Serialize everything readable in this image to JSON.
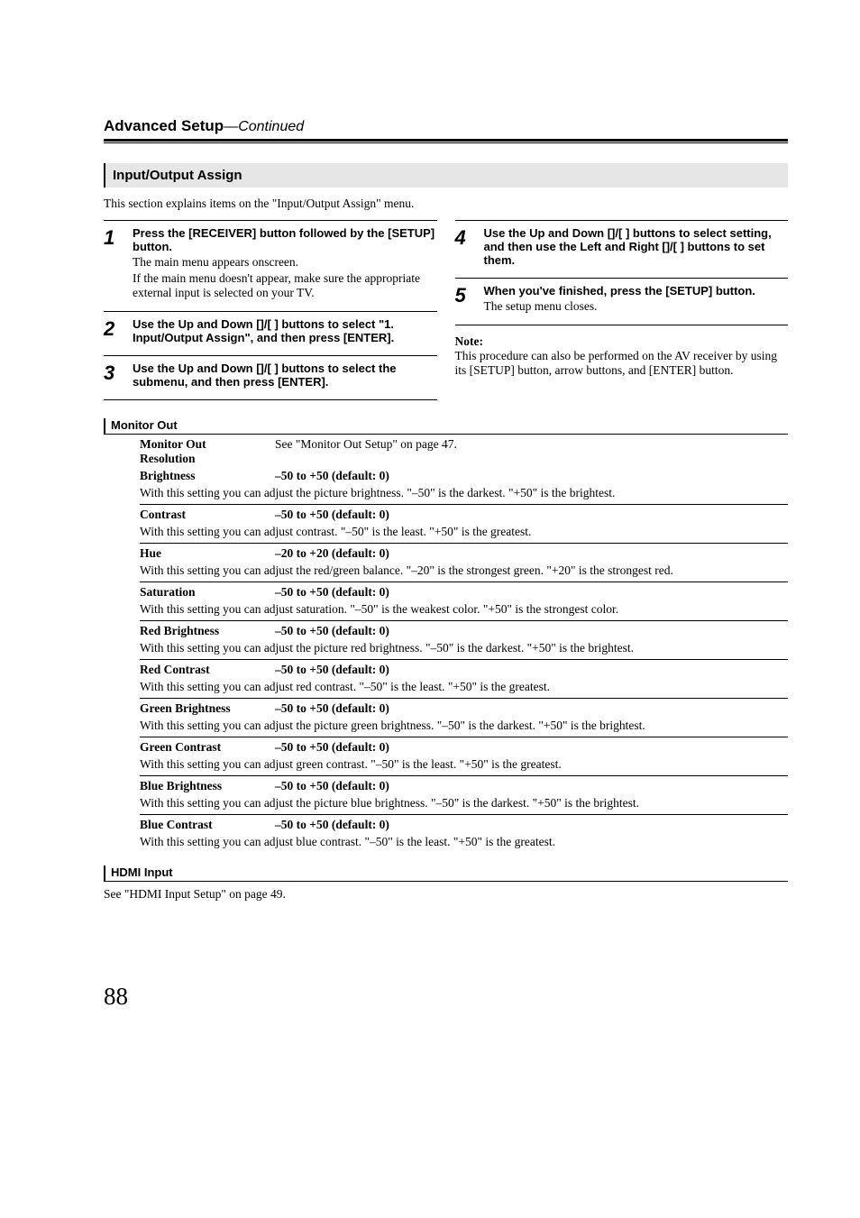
{
  "chapter": {
    "title": "Advanced Setup",
    "cont": "—Continued"
  },
  "section": {
    "title": "Input/Output Assign"
  },
  "intro": "This section explains items on the \"Input/Output Assign\" menu.",
  "left_steps": [
    {
      "num": "1",
      "head": "Press the [RECEIVER] button followed by the [SETUP] button.",
      "text": "The main menu appears onscreen.\nIf the main menu doesn't appear, make sure the appropriate external input is selected on your TV."
    },
    {
      "num": "2",
      "head": "Use the Up and Down []/[  ] buttons to select \"1. Input/Output Assign\", and then press [ENTER].",
      "text": ""
    },
    {
      "num": "3",
      "head": "Use the Up and Down []/[  ] buttons to select the submenu, and then press [ENTER].",
      "text": ""
    }
  ],
  "right_steps": [
    {
      "num": "4",
      "head": "Use the Up and Down []/[  ] buttons to select setting, and then use the Left and Right []/[   ] buttons to set them.",
      "text": ""
    },
    {
      "num": "5",
      "head": "When you've finished, press the [SETUP] button.",
      "text": "The setup menu closes."
    }
  ],
  "note": {
    "label": "Note:",
    "body": "This procedure can also be performed on the AV receiver by using its [SETUP] button, arrow buttons, and [ENTER] button."
  },
  "monitor_out": {
    "heading": "Monitor Out",
    "first": {
      "label": "Monitor Out\nResolution",
      "value": "See \"Monitor Out Setup\" on page 47."
    },
    "rows": [
      {
        "label": "Brightness",
        "value": "–50 to +50 (default: 0)",
        "desc": "With this setting you can adjust the picture brightness. \"–50\" is the darkest. \"+50\" is the brightest."
      },
      {
        "label": "Contrast",
        "value": "–50 to +50 (default: 0)",
        "desc": "With this setting you can adjust contrast. \"–50\" is the least. \"+50\" is the greatest."
      },
      {
        "label": "Hue",
        "value": "–20 to +20 (default: 0)",
        "desc": "With this setting you can adjust the red/green balance. \"–20\" is the strongest green. \"+20\" is the strongest red."
      },
      {
        "label": "Saturation",
        "value": "–50 to +50 (default: 0)",
        "desc": "With this setting you can adjust saturation. \"–50\" is the weakest color. \"+50\" is the strongest color."
      },
      {
        "label": "Red Brightness",
        "value": "–50 to +50 (default: 0)",
        "desc": "With this setting you can adjust the picture red brightness. \"–50\" is the darkest. \"+50\" is the brightest."
      },
      {
        "label": "Red Contrast",
        "value": "–50 to +50 (default: 0)",
        "desc": "With this setting you can adjust red contrast. \"–50\" is the least. \"+50\" is the greatest."
      },
      {
        "label": "Green Brightness",
        "value": "–50 to +50 (default: 0)",
        "desc": "With this setting you can adjust the picture green brightness. \"–50\" is the darkest. \"+50\" is the brightest."
      },
      {
        "label": "Green Contrast",
        "value": "–50 to +50 (default: 0)",
        "desc": "With this setting you can adjust green contrast. \"–50\" is the least. \"+50\" is the greatest."
      },
      {
        "label": "Blue Brightness",
        "value": "–50 to +50 (default: 0)",
        "desc": "With this setting you can adjust the picture blue brightness. \"–50\" is the darkest. \"+50\" is the brightest."
      },
      {
        "label": "Blue Contrast",
        "value": "–50 to +50 (default: 0)",
        "desc": "With this setting you can adjust blue contrast. \"–50\" is the least. \"+50\" is the greatest."
      }
    ]
  },
  "hdmi": {
    "heading": "HDMI Input",
    "text": "See \"HDMI Input Setup\" on page 49."
  },
  "page_number": "88"
}
